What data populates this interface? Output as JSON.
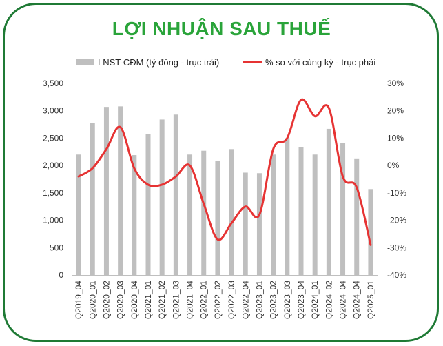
{
  "chart_data": {
    "type": "bar",
    "title": "LỢI NHUẬN SAU THUẾ",
    "categories": [
      "Q2019_04",
      "Q2020_01",
      "Q2020_02",
      "Q2020_03",
      "Q2020_04",
      "Q2021_01",
      "Q2021_02",
      "Q2021_03",
      "Q2021_04",
      "Q2022_01",
      "Q2022_02",
      "Q2022_03",
      "Q2022_04",
      "Q2023_01",
      "Q2023_02",
      "Q2023_03",
      "Q2023_04",
      "Q2024_01",
      "Q2024_02",
      "Q2024_04",
      "Q2024_04",
      "Q2025_01"
    ],
    "series": [
      {
        "name": "LNST-CĐM (tỷ đồng - trục trái)",
        "type": "bar",
        "axis": "left",
        "color": "#bfbfbf",
        "values": [
          2200,
          2770,
          3070,
          3080,
          2190,
          2580,
          2840,
          2930,
          2200,
          2270,
          2090,
          2300,
          1870,
          1860,
          2200,
          2500,
          2330,
          2200,
          2670,
          2410,
          2130,
          1570
        ]
      },
      {
        "name": "% so với cùng kỳ - trục phải",
        "type": "line",
        "axis": "right",
        "color": "#e63333",
        "values": [
          -4,
          -1,
          6,
          14,
          -1,
          -7,
          -7,
          -4,
          0,
          -14,
          -27,
          -21,
          -15,
          -18,
          6,
          10,
          24,
          18,
          21,
          -4,
          -8,
          -29
        ]
      }
    ],
    "y_left": {
      "min": 0,
      "max": 3500,
      "step": 500,
      "tick_labels": [
        "0",
        "500",
        "1,000",
        "1,500",
        "2,000",
        "2,500",
        "3,000",
        "3,500"
      ]
    },
    "y_right": {
      "min": -40,
      "max": 30,
      "step": 10,
      "tick_labels": [
        "-40%",
        "-30%",
        "-20%",
        "-10%",
        "0%",
        "10%",
        "20%",
        "30%"
      ]
    },
    "grid": false,
    "legend_position": "top"
  }
}
